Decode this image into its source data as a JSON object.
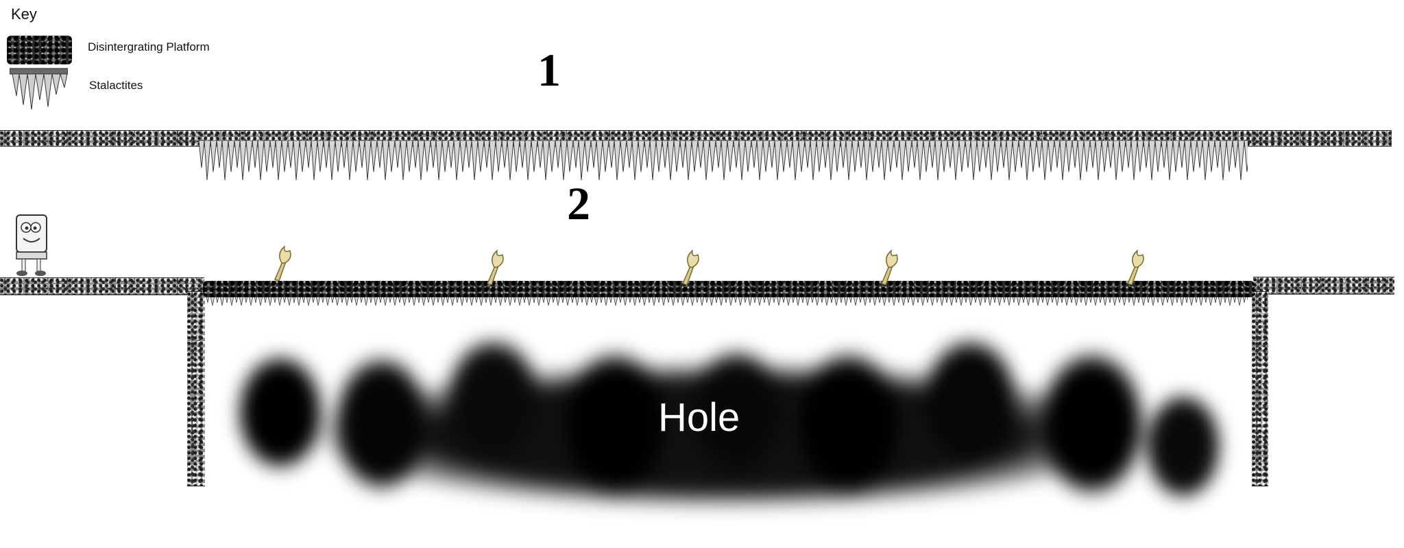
{
  "key": {
    "title": "Key",
    "items": [
      {
        "label": "Disintergrating Platform",
        "icon": "disintegrating-platform-icon"
      },
      {
        "label": "Stalactites",
        "icon": "stalactites-icon"
      }
    ]
  },
  "sections": [
    {
      "number": "1"
    },
    {
      "number": "2"
    }
  ],
  "hole": {
    "label": "Hole"
  },
  "colors": {
    "rock": "#8d8d8d",
    "rock_dark": "#2a2a2a",
    "torch": "#d9c98a",
    "hole": "#000000",
    "hole_label": "#ffffff"
  }
}
